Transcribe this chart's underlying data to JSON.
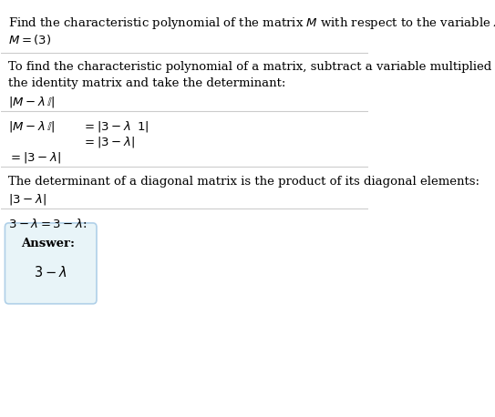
{
  "bg_color": "#ffffff",
  "text_color": "#000000",
  "answer_box_bg": "#e8f4f8",
  "answer_box_border": "#b0d0e8",
  "title_line": "Find the characteristic polynomial of the matrix $M$ with respect to the variable $\\lambda$:",
  "matrix_line": "$M = ( 3 )$",
  "step1_intro": "To find the characteristic polynomial of a matrix, subtract a variable multiplied by\nthe identity matrix and take the determinant:",
  "step1_formula": "$|M - \\lambda\\,\\mathbb{I}|$",
  "step2_eq1": "$|M - \\lambda\\,\\mathbb{I}|$",
  "step2_eq1_rhs": "$= |3 - \\lambda \\;\\ 1|$",
  "step2_eq2_rhs": "$= |3 - \\lambda|$",
  "step2_eq3_lhs": "$= |3 - \\lambda|$",
  "step3_intro": "The determinant of a diagonal matrix is the product of its diagonal elements:",
  "step3_formula": "$|3 - \\lambda|$",
  "step4_line": "$3 - \\lambda = 3 - \\lambda$:",
  "answer_label": "Answer:",
  "answer_value": "$3 - \\lambda$",
  "separator_color": "#cccccc",
  "figsize": [
    5.43,
    4.58
  ],
  "dpi": 100
}
